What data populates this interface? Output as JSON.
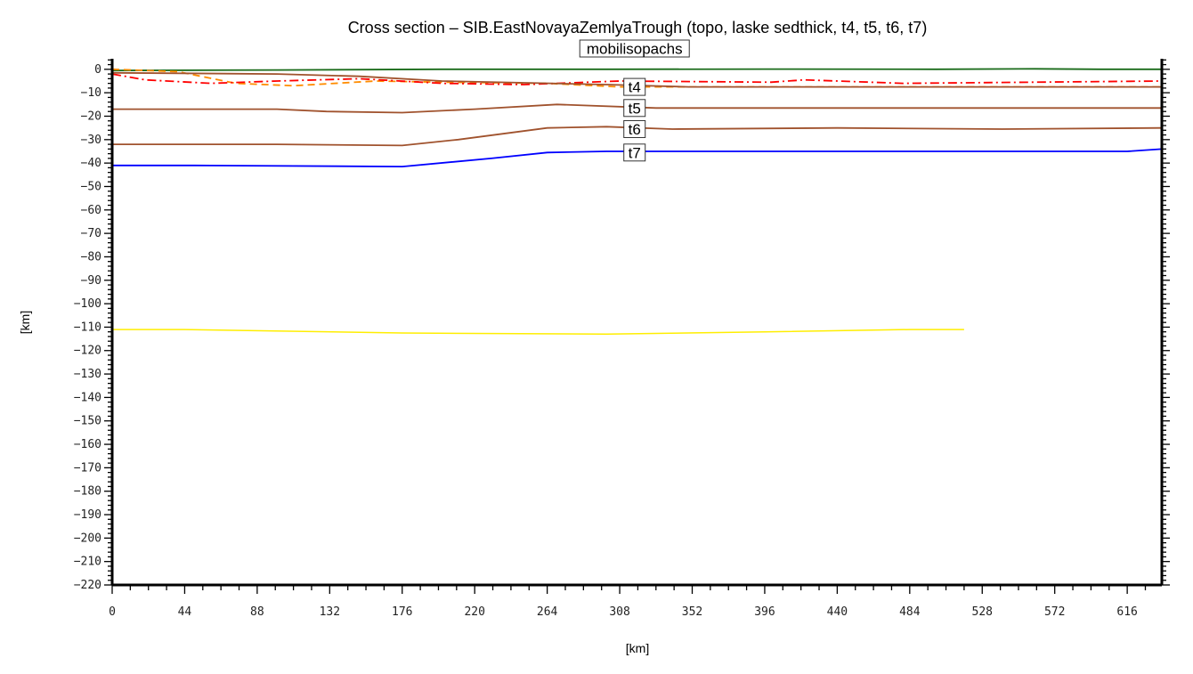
{
  "chart_data": {
    "type": "line",
    "title": "Cross section – SIB.EastNovayaZemlyaTrough (topo, laske sedthick, t4, t5, t6, t7)",
    "xlabel": "[km]",
    "ylabel": "[km]",
    "xlim": [
      0,
      637
    ],
    "ylim": [
      -220,
      4.5
    ],
    "xticks": [
      0,
      44,
      88,
      132,
      176,
      220,
      264,
      308,
      352,
      396,
      440,
      484,
      528,
      572,
      616
    ],
    "yticks": [
      0,
      -10,
      -20,
      -30,
      -40,
      -50,
      -60,
      -70,
      -80,
      -90,
      -100,
      -110,
      -120,
      -130,
      -140,
      -150,
      -160,
      -170,
      -180,
      -190,
      -200,
      -210,
      -220
    ],
    "ytick_labels": [
      "0",
      "−10",
      "−20",
      "−30",
      "−40",
      "−50",
      "−60",
      "−70",
      "−80",
      "−90",
      "−100",
      "−110",
      "−120",
      "−130",
      "−140",
      "−150",
      "−160",
      "−170",
      "−180",
      "−190",
      "−200",
      "−210",
      "−220"
    ],
    "grid": false,
    "series": [
      {
        "key": "topo",
        "color": "#1a6b1a",
        "dash": "",
        "x": [
          0,
          100,
          200,
          300,
          400,
          500,
          560,
          600,
          637
        ],
        "y": [
          -0.5,
          -0.3,
          0,
          0,
          0.1,
          0,
          0.2,
          0,
          0
        ]
      },
      {
        "key": "laske sedthick",
        "color": "#ff8c00",
        "dash": "8,5",
        "x": [
          0,
          40,
          75,
          110,
          160,
          200,
          264,
          308,
          400,
          637
        ],
        "y": [
          0,
          -1,
          -6,
          -7,
          -5,
          -5.5,
          -6,
          -7.5,
          -7.5,
          -7.5
        ]
      },
      {
        "key": "mobilisopachs",
        "color": "#ff0000",
        "dash": "10,4,2,4",
        "x": [
          0,
          20,
          60,
          100,
          150,
          200,
          250,
          308,
          400,
          420,
          480,
          637
        ],
        "y": [
          -2,
          -4.5,
          -6,
          -5,
          -4,
          -6,
          -6.5,
          -5,
          -5.5,
          -4.5,
          -6,
          -5
        ]
      },
      {
        "name": "t4",
        "color": "#a0522d",
        "dash": "",
        "x": [
          0,
          100,
          150,
          200,
          300,
          350,
          637
        ],
        "y": [
          -1.5,
          -2,
          -3,
          -5,
          -6.5,
          -7.5,
          -7.5
        ]
      },
      {
        "name": "t5",
        "color": "#a0522d",
        "dash": "",
        "x": [
          0,
          100,
          130,
          176,
          220,
          270,
          330,
          637
        ],
        "y": [
          -17,
          -17,
          -18,
          -18.5,
          -17,
          -15,
          -16.5,
          -16.5
        ]
      },
      {
        "name": "t6",
        "color": "#a0522d",
        "dash": "",
        "x": [
          0,
          100,
          176,
          210,
          264,
          300,
          340,
          440,
          540,
          637
        ],
        "y": [
          -32,
          -32,
          -32.5,
          -30,
          -25,
          -24.5,
          -25.5,
          -25,
          -25.5,
          -25
        ]
      },
      {
        "name": "t7",
        "color": "#0000ff",
        "dash": "",
        "x": [
          0,
          50,
          176,
          230,
          264,
          300,
          400,
          616,
          637
        ],
        "y": [
          -41,
          -41,
          -41.5,
          -38,
          -35.5,
          -35,
          -35,
          -35,
          -34
        ]
      },
      {
        "key": "yellow",
        "color": "#ffee00",
        "dash": "",
        "x": [
          0,
          44,
          176,
          300,
          396,
          484,
          517
        ],
        "y": [
          -111,
          -111,
          -112.5,
          -113,
          -112,
          -111,
          -111
        ]
      }
    ],
    "labels": [
      {
        "text": "mobilisopachs",
        "x": 317,
        "y": -6
      },
      {
        "text": "t4",
        "x": 317,
        "y": -7.5
      },
      {
        "text": "t5",
        "x": 317,
        "y": -16.5
      },
      {
        "text": "t6",
        "x": 317,
        "y": -25.5
      },
      {
        "text": "t7",
        "x": 317,
        "y": -35.5
      }
    ]
  }
}
